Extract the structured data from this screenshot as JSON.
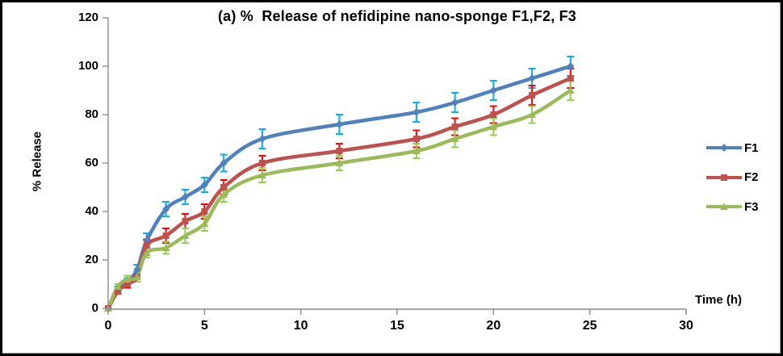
{
  "chart_data": {
    "type": "line",
    "title": "(a) %  Release of nefidipine nano-sponge F1,F2, F3",
    "xlabel": "Time (h)",
    "ylabel": "% Release",
    "x": [
      0,
      0.5,
      1,
      1.5,
      2,
      3,
      4,
      5,
      6,
      8,
      12,
      16,
      18,
      20,
      22,
      24
    ],
    "series": [
      {
        "name": "F1",
        "marker": "diamond",
        "color": "#4F81BD",
        "error_color": "#00B0F0",
        "values": [
          0,
          8,
          11,
          16,
          28,
          41,
          46,
          51,
          60,
          70,
          76,
          81,
          85,
          90,
          95,
          100
        ],
        "errors": [
          0,
          1,
          1.5,
          2,
          3,
          3,
          3,
          3,
          3.5,
          4,
          4,
          4,
          4,
          4,
          4,
          4
        ]
      },
      {
        "name": "F2",
        "marker": "square",
        "color": "#C0504D",
        "error_color": "#FF0000",
        "values": [
          0,
          7,
          10,
          13,
          26,
          30,
          36,
          40,
          50,
          60,
          65,
          70,
          75,
          80,
          88,
          95
        ],
        "errors": [
          0,
          1,
          1.5,
          2,
          2.5,
          3,
          3,
          3,
          3,
          3,
          3,
          3.5,
          3.5,
          3.5,
          4,
          4
        ]
      },
      {
        "name": "F3",
        "marker": "triangle",
        "color": "#9BBB59",
        "error_color": "#92D050",
        "values": [
          0,
          9,
          12,
          13,
          23,
          25,
          30,
          35,
          47,
          55,
          60,
          65,
          70,
          75,
          80,
          90
        ],
        "errors": [
          0,
          1,
          1.5,
          2,
          2,
          2.5,
          3,
          3,
          3,
          3,
          3,
          3,
          3.5,
          3.5,
          3.5,
          4
        ]
      }
    ],
    "x_ticks": [
      0,
      5,
      10,
      15,
      20,
      25,
      30
    ],
    "y_ticks": [
      0,
      20,
      40,
      60,
      80,
      100,
      120
    ],
    "xlim": [
      0,
      30
    ],
    "ylim": [
      0,
      120
    ],
    "grid": false,
    "legend_position": "right",
    "smooth_lines": true,
    "error_bars": true,
    "axis_color": "#8C8C8C"
  }
}
